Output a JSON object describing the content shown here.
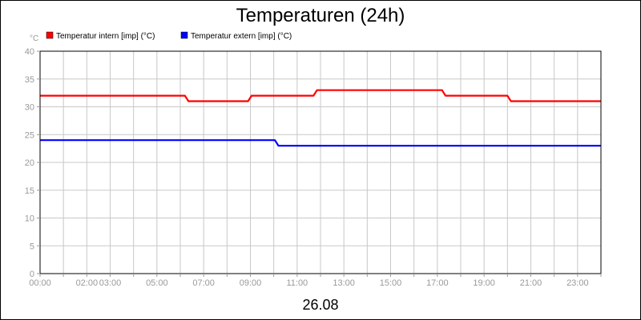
{
  "chart_data": {
    "type": "line",
    "title": "Temperaturen (24h)",
    "ylabel": "°C",
    "xlabel": "26.08",
    "ylim": [
      0,
      40
    ],
    "yticks": [
      0,
      5,
      10,
      15,
      20,
      25,
      30,
      35,
      40
    ],
    "xlim": [
      0,
      24
    ],
    "xtick_labels": [
      {
        "x": 0,
        "label": "00:00"
      },
      {
        "x": 2,
        "label": "02:00"
      },
      {
        "x": 3,
        "label": "03:00"
      },
      {
        "x": 5,
        "label": "05:00"
      },
      {
        "x": 7,
        "label": "07:00"
      },
      {
        "x": 9,
        "label": "09:00"
      },
      {
        "x": 11,
        "label": "11:00"
      },
      {
        "x": 13,
        "label": "13:00"
      },
      {
        "x": 15,
        "label": "15:00"
      },
      {
        "x": 17,
        "label": "17:00"
      },
      {
        "x": 19,
        "label": "19:00"
      },
      {
        "x": 21,
        "label": "21:00"
      },
      {
        "x": 23,
        "label": "23:00"
      }
    ],
    "grid": true,
    "legend_position": "top-left",
    "series": [
      {
        "name": "Temperatur intern [imp] (°C)",
        "color": "#ff0000",
        "points": [
          [
            0,
            32
          ],
          [
            6.2,
            32
          ],
          [
            6.35,
            31
          ],
          [
            8.9,
            31
          ],
          [
            9.05,
            32
          ],
          [
            11.7,
            32
          ],
          [
            11.85,
            33
          ],
          [
            17.2,
            33
          ],
          [
            17.35,
            32
          ],
          [
            20.0,
            32
          ],
          [
            20.15,
            31
          ],
          [
            24,
            31
          ]
        ]
      },
      {
        "name": "Temperatur extern [imp] (°C)",
        "color": "#0000ff",
        "points": [
          [
            0,
            24
          ],
          [
            10.05,
            24
          ],
          [
            10.2,
            23
          ],
          [
            24,
            23
          ]
        ]
      }
    ]
  }
}
